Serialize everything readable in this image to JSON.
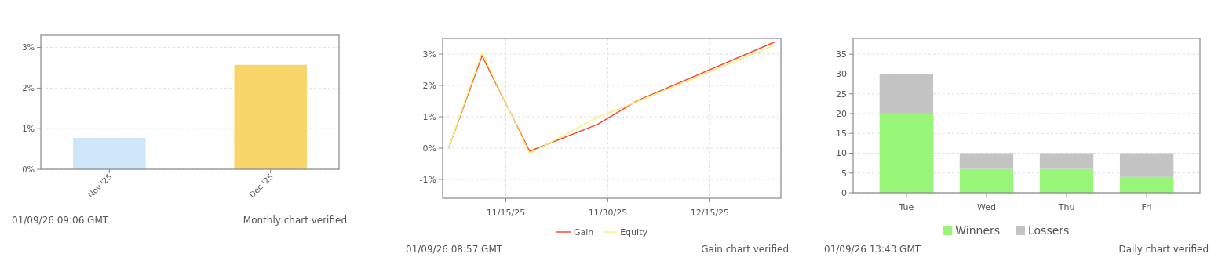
{
  "chart_data": [
    {
      "type": "bar",
      "categories": [
        "Nov '25",
        "Dec '25"
      ],
      "values": [
        0.77,
        2.57
      ],
      "colors": [
        "#cde6f9",
        "#f8d568"
      ],
      "ylim": [
        0,
        3.3
      ],
      "yticks": [
        {
          "value": 0,
          "label": "0%"
        },
        {
          "value": 1,
          "label": "1%"
        },
        {
          "value": 2,
          "label": "2%"
        },
        {
          "value": 3,
          "label": "3%"
        }
      ],
      "grid": "y",
      "legend": false,
      "annotations": [
        "01/09/26 09:06 GMT",
        "Monthly chart verified"
      ]
    },
    {
      "type": "line",
      "x": [
        "2025-11-06T14:00",
        "2025-11-11T12:00",
        "2025-11-18T12:00",
        "2025-11-28T12:00",
        "2025-12-04T07:00",
        "2025-12-24T12:00"
      ],
      "series": [
        {
          "name": "Gain",
          "color": "#ff4433",
          "values": [
            0,
            2.95,
            -0.1,
            0.76,
            1.51,
            3.38
          ]
        },
        {
          "name": "Equity",
          "color": "#f2f27a",
          "values": [
            0,
            3.05,
            -0.18,
            0.99,
            1.48,
            3.28
          ]
        }
      ],
      "xlim": [
        "2025-11-05T17:00",
        "2025-12-25T11:00"
      ],
      "xticks": [
        {
          "value": "2025-11-15",
          "label": "11/15/25"
        },
        {
          "value": "2025-11-30",
          "label": "11/30/25"
        },
        {
          "value": "2025-12-15",
          "label": "12/15/25"
        }
      ],
      "ylim": [
        -1.6,
        3.5
      ],
      "yticks": [
        {
          "value": -1,
          "label": "-1%"
        },
        {
          "value": 0,
          "label": "0%"
        },
        {
          "value": 1,
          "label": "1%"
        },
        {
          "value": 2,
          "label": "2%"
        },
        {
          "value": 3,
          "label": "3%"
        }
      ],
      "grid": true,
      "legend": "bottom",
      "marker": "none",
      "line_style": "solid",
      "annotations": [
        "01/09/26 08:57 GMT",
        "Gain chart verified"
      ]
    },
    {
      "type": "bar",
      "categories": [
        "Tue",
        "Wed",
        "Thu",
        "Fri"
      ],
      "stacked": true,
      "series": [
        {
          "name": "Winners",
          "color": "#97f577",
          "values": [
            20,
            6,
            6,
            4
          ]
        },
        {
          "name": "Lossers",
          "color": "#c4c4c4",
          "values": [
            10,
            4,
            4,
            6
          ]
        }
      ],
      "ylim": [
        0,
        39
      ],
      "yticks": [
        0,
        5,
        10,
        15,
        20,
        25,
        30,
        35
      ],
      "grid": "y",
      "legend": "bottom",
      "annotations": [
        "01/09/26 13:43 GMT",
        "Daily chart verified"
      ]
    }
  ]
}
